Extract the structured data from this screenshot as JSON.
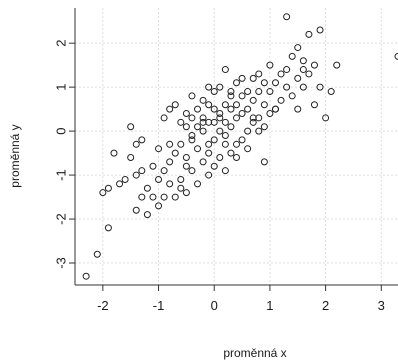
{
  "chart_data": {
    "type": "scatter",
    "xlabel": "proměnná x",
    "ylabel": "proměnná y",
    "xlim": [
      -2.5,
      3.3
    ],
    "ylim": [
      -3.5,
      2.8
    ],
    "xticks": [
      -2,
      -1,
      0,
      1,
      2,
      3
    ],
    "yticks": [
      -3,
      -2,
      -1,
      0,
      1,
      2
    ],
    "grid": true,
    "marker": "open-circle",
    "colors": {
      "points": "#222222",
      "grid": "#dddddd",
      "axis": "#333333"
    },
    "series": [
      {
        "x": [
          -2.3,
          -2.1,
          -2.0,
          -1.9,
          -1.9,
          -1.8,
          -1.7,
          -1.6,
          -1.5,
          -1.5,
          -1.4,
          -1.4,
          -1.4,
          -1.3,
          -1.3,
          -1.3,
          -1.2,
          -1.2,
          -1.1,
          -1.1,
          -1.0,
          -1.0,
          -0.9,
          -0.9,
          -0.9,
          -0.8,
          -0.8,
          -0.8,
          -0.7,
          -0.7,
          -0.7,
          -0.6,
          -0.6,
          -0.6,
          -0.5,
          -0.5,
          -0.5,
          -0.5,
          -0.4,
          -0.4,
          -0.4,
          -0.4,
          -0.3,
          -0.3,
          -0.3,
          -0.3,
          -0.2,
          -0.2,
          -0.2,
          -0.2,
          -0.1,
          -0.1,
          -0.1,
          -0.1,
          -0.1,
          0.0,
          0.0,
          0.0,
          0.0,
          0.0,
          0.1,
          0.1,
          0.1,
          0.1,
          0.2,
          0.2,
          0.2,
          0.2,
          0.2,
          0.3,
          0.3,
          0.3,
          0.3,
          0.4,
          0.4,
          0.4,
          0.4,
          0.5,
          0.5,
          0.5,
          0.5,
          0.6,
          0.6,
          0.6,
          0.7,
          0.7,
          0.7,
          0.8,
          0.8,
          0.8,
          0.9,
          0.9,
          0.9,
          1.0,
          1.0,
          1.0,
          1.1,
          1.1,
          1.2,
          1.2,
          1.3,
          1.3,
          1.4,
          1.4,
          1.5,
          1.5,
          1.6,
          1.6,
          1.7,
          1.7,
          1.8,
          1.8,
          1.9,
          2.0,
          2.1,
          2.2,
          3.3,
          -0.6,
          -0.5,
          -0.4,
          -0.2,
          -0.1,
          0.1,
          0.2,
          0.3,
          0.4,
          0.6,
          0.7,
          0.8,
          0.9,
          1.1,
          1.3,
          1.5,
          1.6,
          1.9,
          -1.0,
          -0.8
        ],
        "y": [
          -3.3,
          -2.8,
          -1.4,
          -1.3,
          -2.2,
          -0.5,
          -1.2,
          -1.1,
          -0.6,
          0.1,
          -1.8,
          -1.0,
          -0.3,
          -1.5,
          -0.9,
          -0.2,
          -1.3,
          -1.9,
          -1.5,
          -0.8,
          -1.7,
          -0.4,
          -1.5,
          -0.9,
          0.3,
          -1.2,
          -0.7,
          0.5,
          -1.5,
          -0.5,
          0.6,
          -1.1,
          -0.3,
          0.2,
          -1.4,
          -0.8,
          0.1,
          0.4,
          -0.9,
          -0.2,
          0.3,
          0.8,
          -1.2,
          -0.4,
          0.1,
          0.5,
          -0.7,
          0.0,
          0.3,
          0.7,
          -1.0,
          -0.5,
          0.2,
          0.6,
          1.0,
          -0.8,
          -0.2,
          0.2,
          0.5,
          0.9,
          -0.6,
          0.0,
          0.4,
          1.0,
          -0.9,
          -0.3,
          0.2,
          0.6,
          1.4,
          -0.5,
          0.1,
          0.5,
          0.8,
          -0.3,
          0.3,
          0.6,
          1.1,
          -0.2,
          0.4,
          0.8,
          1.2,
          0.0,
          0.5,
          0.9,
          0.2,
          0.7,
          1.2,
          0.3,
          0.9,
          1.3,
          0.1,
          0.6,
          1.1,
          0.4,
          0.9,
          1.5,
          0.5,
          1.1,
          0.7,
          1.3,
          1.0,
          2.6,
          0.8,
          1.7,
          1.2,
          1.9,
          1.0,
          1.6,
          1.3,
          2.2,
          0.6,
          1.5,
          2.3,
          0.3,
          0.9,
          1.5,
          1.7,
          -1.3,
          -0.6,
          -0.1,
          0.2,
          -0.3,
          0.3,
          -0.1,
          0.9,
          -0.6,
          -0.4,
          0.3,
          0.0,
          -0.7,
          0.5,
          1.4,
          0.5,
          1.4,
          1.0,
          -1.1,
          -0.3
        ]
      }
    ]
  }
}
